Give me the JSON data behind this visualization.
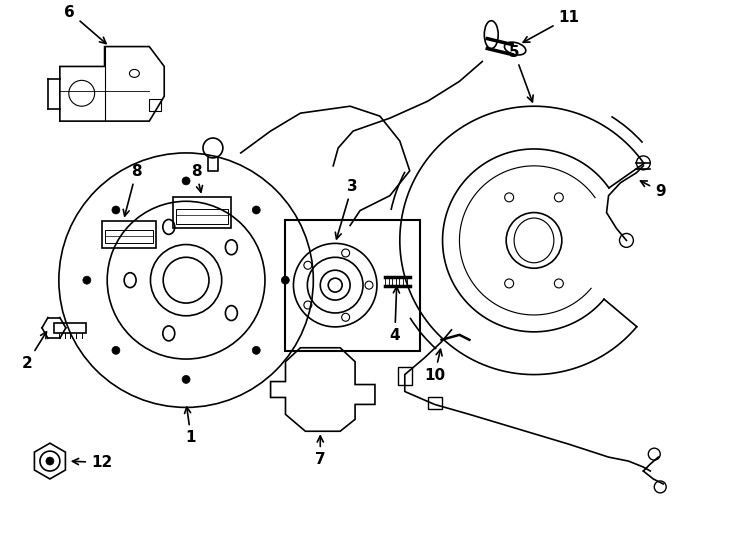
{
  "title": "",
  "background_color": "#ffffff",
  "line_color": "#000000",
  "label_color": "#000000",
  "figsize": [
    7.34,
    5.4
  ],
  "dpi": 100,
  "arrow_color": "#000000"
}
